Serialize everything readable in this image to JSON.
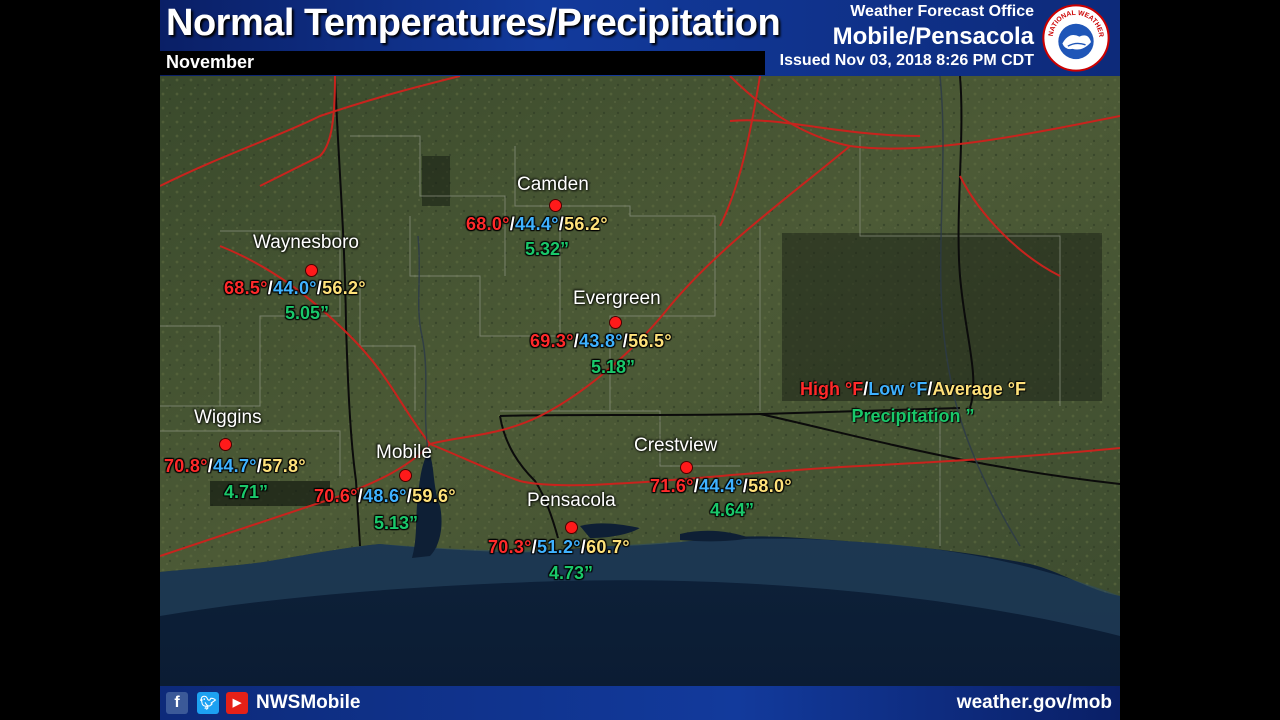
{
  "header": {
    "title": "Normal Temperatures/Precipitation",
    "month": "November",
    "office_line": "Weather Forecast Office",
    "office_city": "Mobile/Pensacola",
    "issued": "Issued Nov 03, 2018 8:26 PM CDT",
    "logo_text": "NATIONAL WEATHER SERVICE"
  },
  "legend": {
    "high": "High °F",
    "low": "Low °F",
    "average": "Average °F",
    "precip": "Precipitation ”",
    "sep": "/"
  },
  "stations": [
    {
      "name": "Camden",
      "high": "68.0°",
      "low": "44.4°",
      "avg": "56.2°",
      "precip": "5.32”"
    },
    {
      "name": "Waynesboro",
      "high": "68.5°",
      "low": "44.0°",
      "avg": "56.2°",
      "precip": "5.05”"
    },
    {
      "name": "Evergreen",
      "high": "69.3°",
      "low": "43.8°",
      "avg": "56.5°",
      "precip": "5.18”"
    },
    {
      "name": "Wiggins",
      "high": "70.8°",
      "low": "44.7°",
      "avg": "57.8°",
      "precip": "4.71”"
    },
    {
      "name": "Mobile",
      "high": "70.6°",
      "low": "48.6°",
      "avg": "59.6°",
      "precip": "5.13”"
    },
    {
      "name": "Crestview",
      "high": "71.6°",
      "low": "44.4°",
      "avg": "58.0°",
      "precip": "4.64”"
    },
    {
      "name": "Pensacola",
      "high": "70.3°",
      "low": "51.2°",
      "avg": "60.7°",
      "precip": "4.73”"
    }
  ],
  "footer": {
    "handle": "NWSMobile",
    "website": "weather.gov/mob",
    "icons": [
      "facebook-icon",
      "twitter-icon",
      "youtube-icon"
    ]
  },
  "colors": {
    "high": "#ff2a2a",
    "low": "#3fb2ff",
    "average": "#ffe27a",
    "precip": "#1ac86a",
    "header": "#123a9c",
    "station_dot": "#ff1a1a"
  }
}
